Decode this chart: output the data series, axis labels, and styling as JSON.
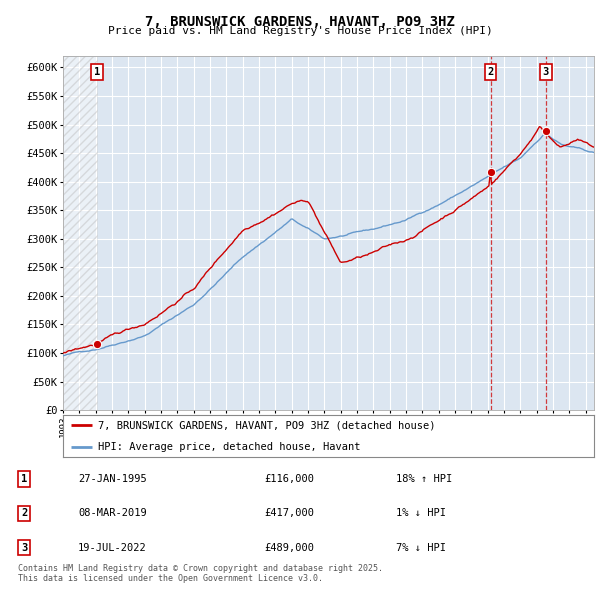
{
  "title": "7, BRUNSWICK GARDENS, HAVANT, PO9 3HZ",
  "subtitle": "Price paid vs. HM Land Registry's House Price Index (HPI)",
  "ylim": [
    0,
    620000
  ],
  "yticks": [
    0,
    50000,
    100000,
    150000,
    200000,
    250000,
    300000,
    350000,
    400000,
    450000,
    500000,
    550000,
    600000
  ],
  "ytick_labels": [
    "£0",
    "£50K",
    "£100K",
    "£150K",
    "£200K",
    "£250K",
    "£300K",
    "£350K",
    "£400K",
    "£450K",
    "£500K",
    "£550K",
    "£600K"
  ],
  "bg_color": "#dce6f1",
  "grid_color": "#ffffff",
  "legend_label_red": "7, BRUNSWICK GARDENS, HAVANT, PO9 3HZ (detached house)",
  "legend_label_blue": "HPI: Average price, detached house, Havant",
  "footer": "Contains HM Land Registry data © Crown copyright and database right 2025.\nThis data is licensed under the Open Government Licence v3.0.",
  "sale_labels": [
    {
      "num": "1",
      "date": "27-JAN-1995",
      "price": "£116,000",
      "hpi": "18% ↑ HPI"
    },
    {
      "num": "2",
      "date": "08-MAR-2019",
      "price": "£417,000",
      "hpi": "1% ↓ HPI"
    },
    {
      "num": "3",
      "date": "19-JUL-2022",
      "price": "£489,000",
      "hpi": "7% ↓ HPI"
    }
  ],
  "sale_points": [
    {
      "year": 1995.07,
      "price": 116000
    },
    {
      "year": 2019.18,
      "price": 417000
    },
    {
      "year": 2022.55,
      "price": 489000
    }
  ],
  "hpi_color": "#6699cc",
  "price_color": "#cc0000",
  "xmin": 1993.0,
  "xmax": 2025.5
}
